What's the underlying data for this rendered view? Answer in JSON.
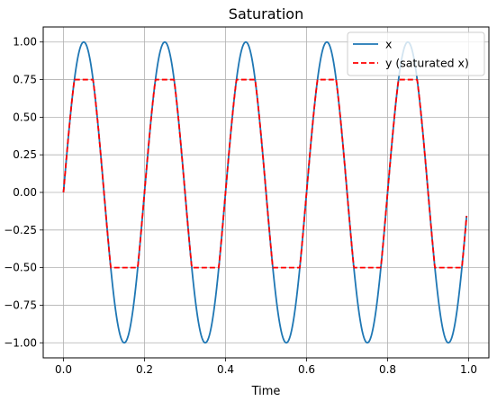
{
  "chart_data": {
    "type": "line",
    "title": "Saturation",
    "xlabel": "Time",
    "ylabel": "",
    "xlim": [
      -0.05,
      1.05
    ],
    "ylim": [
      -1.1,
      1.1
    ],
    "xticks": [
      0.0,
      0.2,
      0.4,
      0.6,
      0.8,
      1.0
    ],
    "xtick_labels": [
      "0.0",
      "0.2",
      "0.4",
      "0.6",
      "0.8",
      "1.0"
    ],
    "yticks": [
      1.0,
      0.75,
      0.5,
      0.25,
      0.0,
      -0.25,
      -0.5,
      -0.75,
      -1.0
    ],
    "ytick_labels": [
      "1.00",
      "0.75",
      "0.50",
      "0.25",
      "0.00",
      "−0.25",
      "−0.50",
      "−0.75",
      "−1.00"
    ],
    "grid": true,
    "legend_position": "top-right",
    "series": [
      {
        "name": "x",
        "color": "#1f77b4",
        "dash": "solid",
        "function": "sin(2*pi*5*t)",
        "x_range": [
          0.0,
          0.995
        ]
      },
      {
        "name": "y (saturated x)",
        "color": "#ff0000",
        "dash": "dashed",
        "function": "clip(sin(2*pi*5*t), -0.5, 0.75)",
        "x_range": [
          0.0,
          0.995
        ],
        "clip_upper": 0.75,
        "clip_lower": -0.5
      }
    ]
  }
}
